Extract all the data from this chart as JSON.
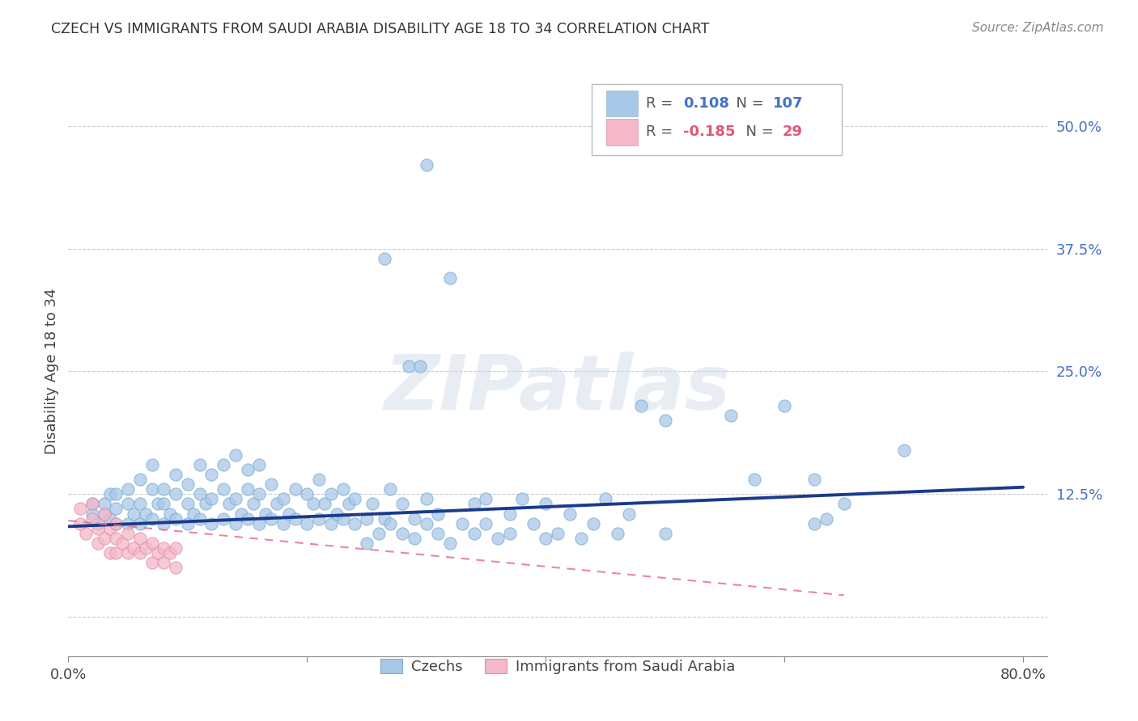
{
  "title": "CZECH VS IMMIGRANTS FROM SAUDI ARABIA DISABILITY AGE 18 TO 34 CORRELATION CHART",
  "source": "Source: ZipAtlas.com",
  "ylabel": "Disability Age 18 to 34",
  "xlim": [
    0.0,
    0.82
  ],
  "ylim": [
    -0.04,
    0.54
  ],
  "xticks": [
    0.0,
    0.2,
    0.4,
    0.6,
    0.8
  ],
  "xtick_labels": [
    "0.0%",
    "",
    "",
    "",
    "80.0%"
  ],
  "yticks": [
    0.0,
    0.125,
    0.25,
    0.375,
    0.5
  ],
  "ytick_labels": [
    "",
    "12.5%",
    "25.0%",
    "37.5%",
    "50.0%"
  ],
  "legend_blue_r": "0.108",
  "legend_blue_n": "107",
  "legend_pink_r": "-0.185",
  "legend_pink_n": "29",
  "blue_color": "#a8c8e8",
  "pink_color": "#f4b8c8",
  "blue_edge_color": "#7aaed0",
  "pink_edge_color": "#e090a8",
  "blue_line_color": "#1a3a8c",
  "pink_line_color": "#e87090",
  "legend_r_color": "#4472c4",
  "legend_pink_r_color": "#e05878",
  "blue_scatter": [
    [
      0.02,
      0.105
    ],
    [
      0.02,
      0.115
    ],
    [
      0.025,
      0.095
    ],
    [
      0.03,
      0.105
    ],
    [
      0.03,
      0.115
    ],
    [
      0.035,
      0.1
    ],
    [
      0.035,
      0.125
    ],
    [
      0.04,
      0.095
    ],
    [
      0.04,
      0.11
    ],
    [
      0.04,
      0.125
    ],
    [
      0.05,
      0.095
    ],
    [
      0.05,
      0.115
    ],
    [
      0.05,
      0.13
    ],
    [
      0.055,
      0.105
    ],
    [
      0.06,
      0.095
    ],
    [
      0.06,
      0.115
    ],
    [
      0.06,
      0.14
    ],
    [
      0.065,
      0.105
    ],
    [
      0.07,
      0.1
    ],
    [
      0.07,
      0.13
    ],
    [
      0.07,
      0.155
    ],
    [
      0.075,
      0.115
    ],
    [
      0.08,
      0.095
    ],
    [
      0.08,
      0.115
    ],
    [
      0.08,
      0.13
    ],
    [
      0.085,
      0.105
    ],
    [
      0.09,
      0.1
    ],
    [
      0.09,
      0.125
    ],
    [
      0.09,
      0.145
    ],
    [
      0.1,
      0.095
    ],
    [
      0.1,
      0.115
    ],
    [
      0.1,
      0.135
    ],
    [
      0.105,
      0.105
    ],
    [
      0.11,
      0.1
    ],
    [
      0.11,
      0.125
    ],
    [
      0.11,
      0.155
    ],
    [
      0.115,
      0.115
    ],
    [
      0.12,
      0.095
    ],
    [
      0.12,
      0.12
    ],
    [
      0.12,
      0.145
    ],
    [
      0.13,
      0.1
    ],
    [
      0.13,
      0.13
    ],
    [
      0.13,
      0.155
    ],
    [
      0.135,
      0.115
    ],
    [
      0.14,
      0.095
    ],
    [
      0.14,
      0.12
    ],
    [
      0.14,
      0.165
    ],
    [
      0.145,
      0.105
    ],
    [
      0.15,
      0.1
    ],
    [
      0.15,
      0.13
    ],
    [
      0.15,
      0.15
    ],
    [
      0.155,
      0.115
    ],
    [
      0.16,
      0.095
    ],
    [
      0.16,
      0.125
    ],
    [
      0.16,
      0.155
    ],
    [
      0.165,
      0.105
    ],
    [
      0.17,
      0.1
    ],
    [
      0.17,
      0.135
    ],
    [
      0.175,
      0.115
    ],
    [
      0.18,
      0.095
    ],
    [
      0.18,
      0.12
    ],
    [
      0.185,
      0.105
    ],
    [
      0.19,
      0.1
    ],
    [
      0.19,
      0.13
    ],
    [
      0.2,
      0.095
    ],
    [
      0.2,
      0.125
    ],
    [
      0.205,
      0.115
    ],
    [
      0.21,
      0.1
    ],
    [
      0.21,
      0.14
    ],
    [
      0.215,
      0.115
    ],
    [
      0.22,
      0.095
    ],
    [
      0.22,
      0.125
    ],
    [
      0.225,
      0.105
    ],
    [
      0.23,
      0.1
    ],
    [
      0.23,
      0.13
    ],
    [
      0.235,
      0.115
    ],
    [
      0.24,
      0.095
    ],
    [
      0.24,
      0.12
    ],
    [
      0.25,
      0.1
    ],
    [
      0.25,
      0.075
    ],
    [
      0.255,
      0.115
    ],
    [
      0.26,
      0.085
    ],
    [
      0.265,
      0.1
    ],
    [
      0.27,
      0.13
    ],
    [
      0.27,
      0.095
    ],
    [
      0.28,
      0.085
    ],
    [
      0.28,
      0.115
    ],
    [
      0.29,
      0.1
    ],
    [
      0.29,
      0.08
    ],
    [
      0.3,
      0.095
    ],
    [
      0.3,
      0.12
    ],
    [
      0.31,
      0.085
    ],
    [
      0.31,
      0.105
    ],
    [
      0.32,
      0.075
    ],
    [
      0.33,
      0.095
    ],
    [
      0.34,
      0.115
    ],
    [
      0.34,
      0.085
    ],
    [
      0.35,
      0.12
    ],
    [
      0.35,
      0.095
    ],
    [
      0.36,
      0.08
    ],
    [
      0.37,
      0.105
    ],
    [
      0.37,
      0.085
    ],
    [
      0.38,
      0.12
    ],
    [
      0.39,
      0.095
    ],
    [
      0.4,
      0.08
    ],
    [
      0.4,
      0.115
    ],
    [
      0.41,
      0.085
    ],
    [
      0.42,
      0.105
    ],
    [
      0.43,
      0.08
    ],
    [
      0.44,
      0.095
    ],
    [
      0.45,
      0.12
    ],
    [
      0.46,
      0.085
    ],
    [
      0.47,
      0.105
    ],
    [
      0.3,
      0.46
    ],
    [
      0.265,
      0.365
    ],
    [
      0.32,
      0.345
    ],
    [
      0.285,
      0.255
    ],
    [
      0.295,
      0.255
    ],
    [
      0.48,
      0.215
    ],
    [
      0.5,
      0.2
    ],
    [
      0.6,
      0.215
    ],
    [
      0.555,
      0.205
    ],
    [
      0.625,
      0.14
    ],
    [
      0.65,
      0.115
    ],
    [
      0.7,
      0.17
    ],
    [
      0.575,
      0.14
    ],
    [
      0.635,
      0.1
    ],
    [
      0.625,
      0.095
    ],
    [
      0.5,
      0.085
    ]
  ],
  "pink_scatter": [
    [
      0.01,
      0.095
    ],
    [
      0.01,
      0.11
    ],
    [
      0.015,
      0.085
    ],
    [
      0.02,
      0.1
    ],
    [
      0.02,
      0.115
    ],
    [
      0.025,
      0.09
    ],
    [
      0.025,
      0.075
    ],
    [
      0.03,
      0.105
    ],
    [
      0.03,
      0.08
    ],
    [
      0.035,
      0.09
    ],
    [
      0.035,
      0.065
    ],
    [
      0.04,
      0.08
    ],
    [
      0.04,
      0.065
    ],
    [
      0.04,
      0.095
    ],
    [
      0.045,
      0.075
    ],
    [
      0.05,
      0.065
    ],
    [
      0.05,
      0.085
    ],
    [
      0.055,
      0.07
    ],
    [
      0.06,
      0.065
    ],
    [
      0.06,
      0.08
    ],
    [
      0.065,
      0.07
    ],
    [
      0.07,
      0.055
    ],
    [
      0.07,
      0.075
    ],
    [
      0.075,
      0.065
    ],
    [
      0.08,
      0.055
    ],
    [
      0.08,
      0.07
    ],
    [
      0.085,
      0.065
    ],
    [
      0.09,
      0.05
    ],
    [
      0.09,
      0.07
    ]
  ],
  "blue_trend_x": [
    0.0,
    0.8
  ],
  "blue_trend_y": [
    0.092,
    0.132
  ],
  "pink_trend_x": [
    0.0,
    0.65
  ],
  "pink_trend_y": [
    0.098,
    0.022
  ],
  "watermark": "ZIPatlas",
  "background_color": "#ffffff",
  "grid_color": "#c8c8c8"
}
